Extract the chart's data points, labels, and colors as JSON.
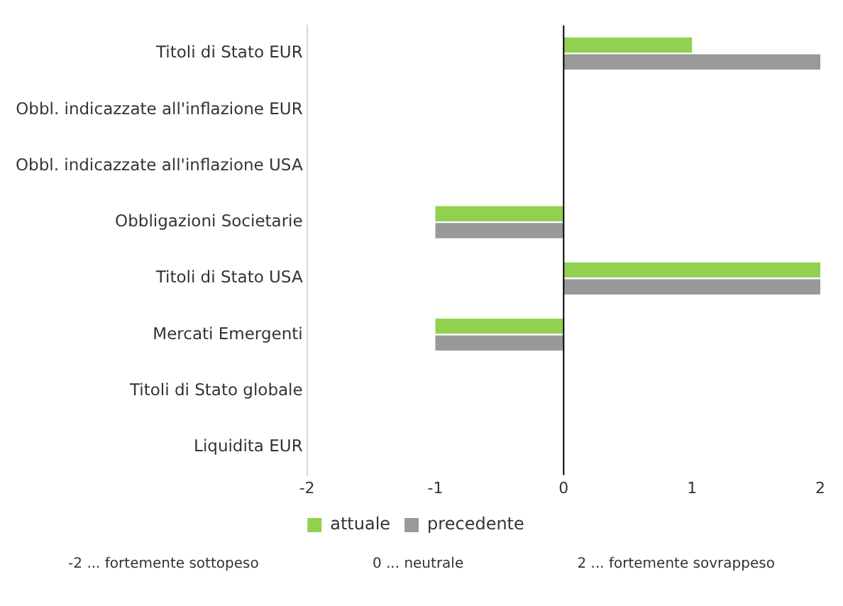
{
  "chart_data": {
    "type": "bar",
    "orientation": "horizontal",
    "categories": [
      "Titoli di Stato EUR",
      "Obbl. indicazzate all'inflazione EUR",
      "Obbl. indicazzate all'inflazione USA",
      "Obbligazioni Societarie",
      "Titoli di Stato USA",
      "Mercati Emergenti",
      "Titoli di Stato globale",
      "Liquidita EUR"
    ],
    "series": [
      {
        "name": "attuale",
        "color": "#92d050",
        "values": [
          1,
          0,
          0,
          -1,
          2,
          -1,
          0,
          0
        ]
      },
      {
        "name": "precedente",
        "color": "#999999",
        "values": [
          2,
          0,
          0,
          -1,
          2,
          -1,
          0,
          0
        ]
      }
    ],
    "xlim": [
      -2,
      2
    ],
    "xticks": [
      -2,
      -1,
      0,
      1,
      2
    ],
    "grid": false,
    "legend": "bottom",
    "ref_lines": [
      {
        "axis": "x",
        "value": 0,
        "color": "#000000"
      }
    ],
    "annotations": [
      "-2 ... fortemente sottopeso",
      "0 ... neutrale",
      "2 ... fortemente sovrappeso"
    ]
  }
}
